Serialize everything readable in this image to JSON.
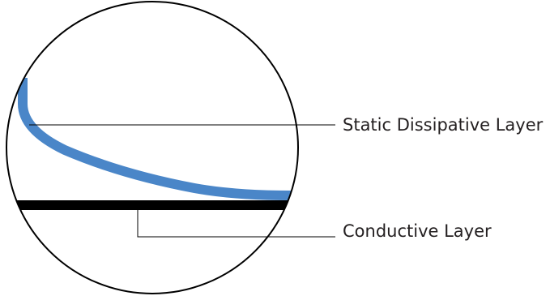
{
  "labels": {
    "static_dissipative": "Static Dissipative Layer",
    "conductive": "Conductive Layer"
  },
  "colors": {
    "static_dissipative_layer": "#4a86c8",
    "conductive_layer": "#000000",
    "outline": "#000000",
    "leader_line": "#000000",
    "label_text": "#231f20",
    "background": "#ffffff"
  }
}
